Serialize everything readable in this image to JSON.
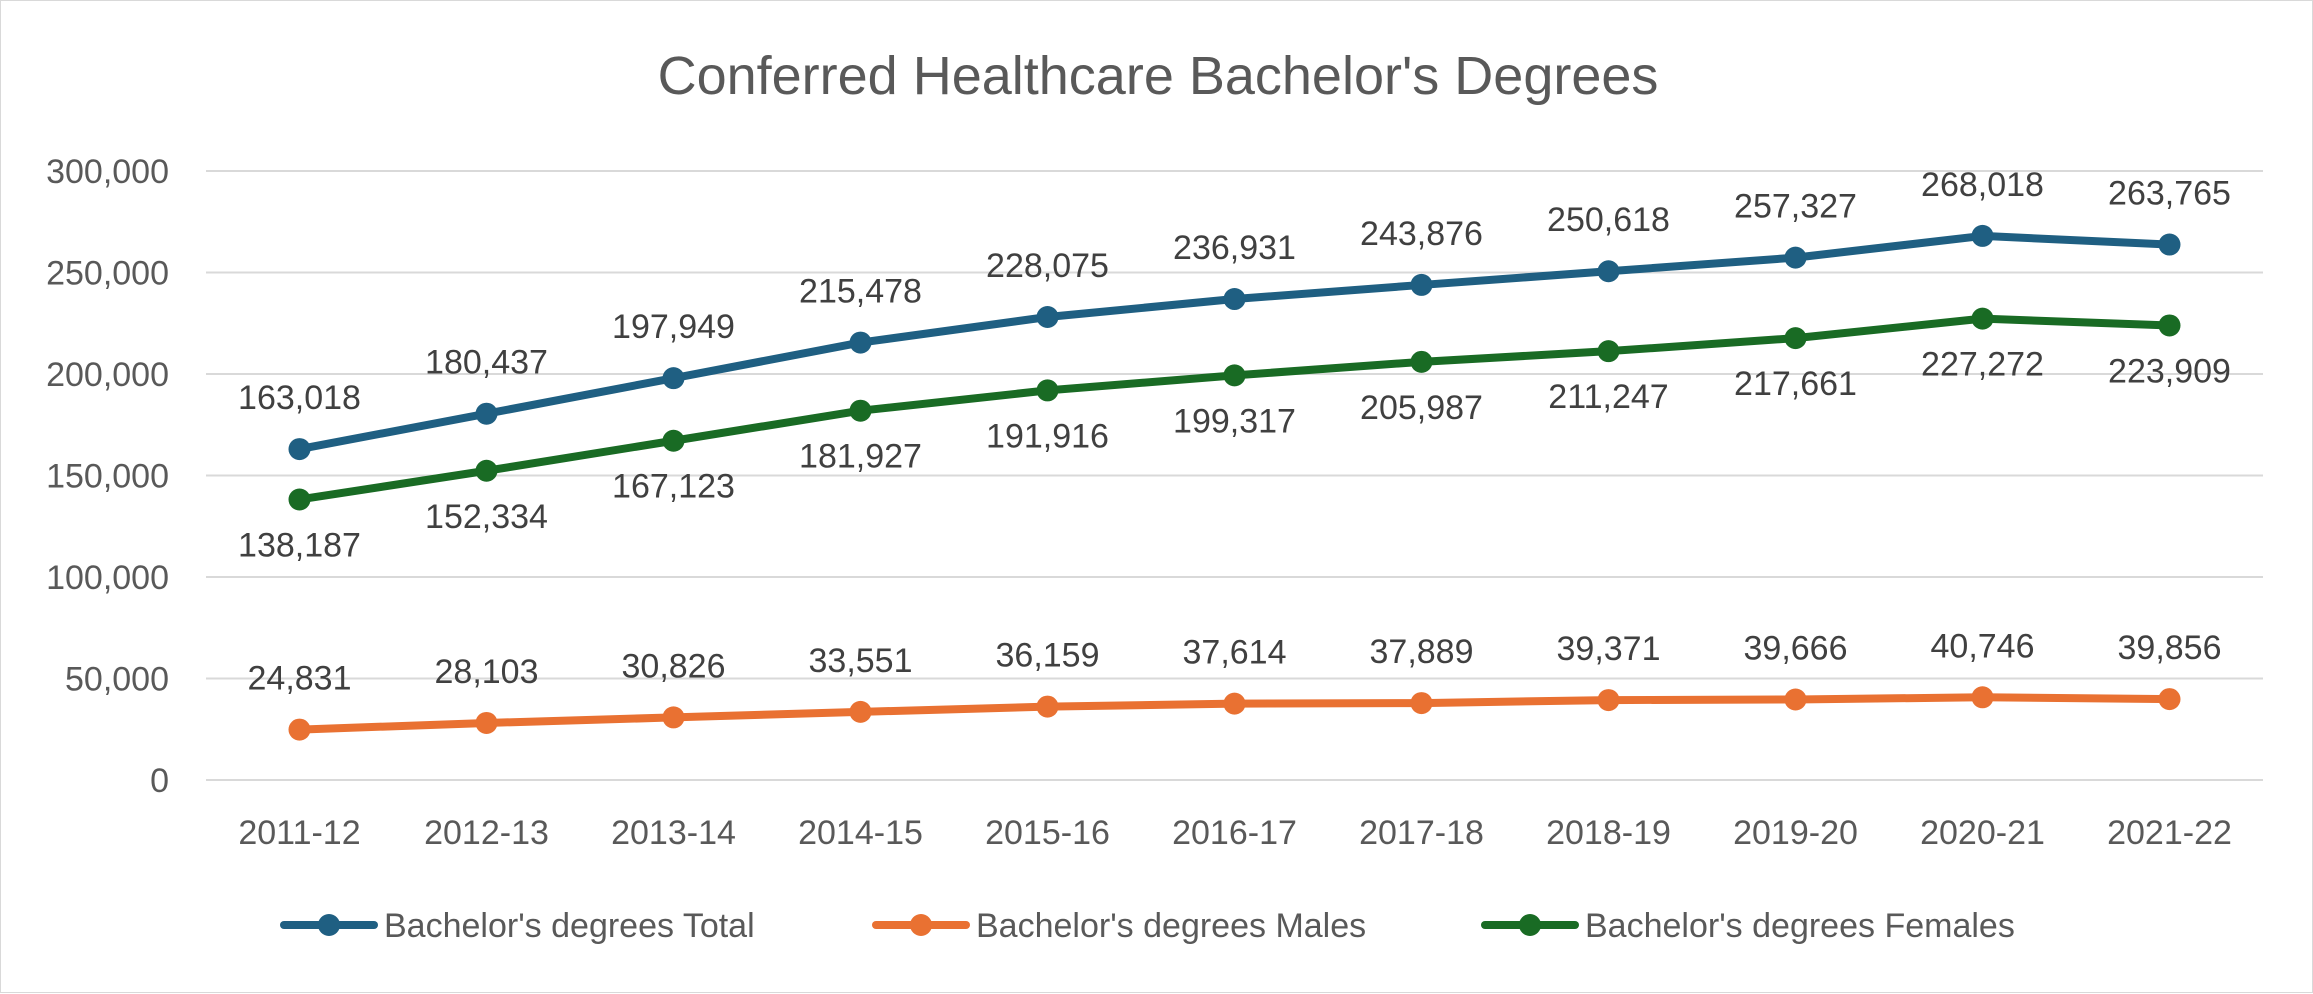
{
  "chart_data": {
    "type": "line",
    "title": "Conferred Healthcare Bachelor's Degrees",
    "xlabel": "",
    "ylabel": "",
    "ylim": [
      0,
      300000
    ],
    "yticks": [
      0,
      50000,
      100000,
      150000,
      200000,
      250000,
      300000
    ],
    "ytick_labels": [
      "0",
      "50,000",
      "100,000",
      "150,000",
      "200,000",
      "250,000",
      "300,000"
    ],
    "categories": [
      "2011-12",
      "2012-13",
      "2013-14",
      "2014-15",
      "2015-16",
      "2016-17",
      "2017-18",
      "2018-19",
      "2019-20",
      "2020-21",
      "2021-22"
    ],
    "grid": true,
    "legend": "bottom",
    "series": [
      {
        "name": "Bachelor's degrees Total",
        "color": "#1f5f82",
        "values": [
          163018,
          180437,
          197949,
          215478,
          228075,
          236931,
          243876,
          250618,
          257327,
          268018,
          263765
        ],
        "labels": [
          "163,018",
          "180,437",
          "197,949",
          "215,478",
          "228,075",
          "236,931",
          "243,876",
          "250,618",
          "257,327",
          "268,018",
          "263,765"
        ],
        "label_position": "above"
      },
      {
        "name": "Bachelor's degrees Males",
        "color": "#e97132",
        "values": [
          24831,
          28103,
          30826,
          33551,
          36159,
          37614,
          37889,
          39371,
          39666,
          40746,
          39856
        ],
        "labels": [
          "24,831",
          "28,103",
          "30,826",
          "33,551",
          "36,159",
          "37,614",
          "37,889",
          "39,371",
          "39,666",
          "40,746",
          "39,856"
        ],
        "label_position": "above"
      },
      {
        "name": "Bachelor's degrees Females",
        "color": "#196b24",
        "values": [
          138187,
          152334,
          167123,
          181927,
          191916,
          199317,
          205987,
          211247,
          217661,
          227272,
          223909
        ],
        "labels": [
          "138,187",
          "152,334",
          "167,123",
          "181,927",
          "191,916",
          "199,317",
          "205,987",
          "211,247",
          "217,661",
          "227,272",
          "223,909"
        ],
        "label_position": "below"
      }
    ]
  }
}
